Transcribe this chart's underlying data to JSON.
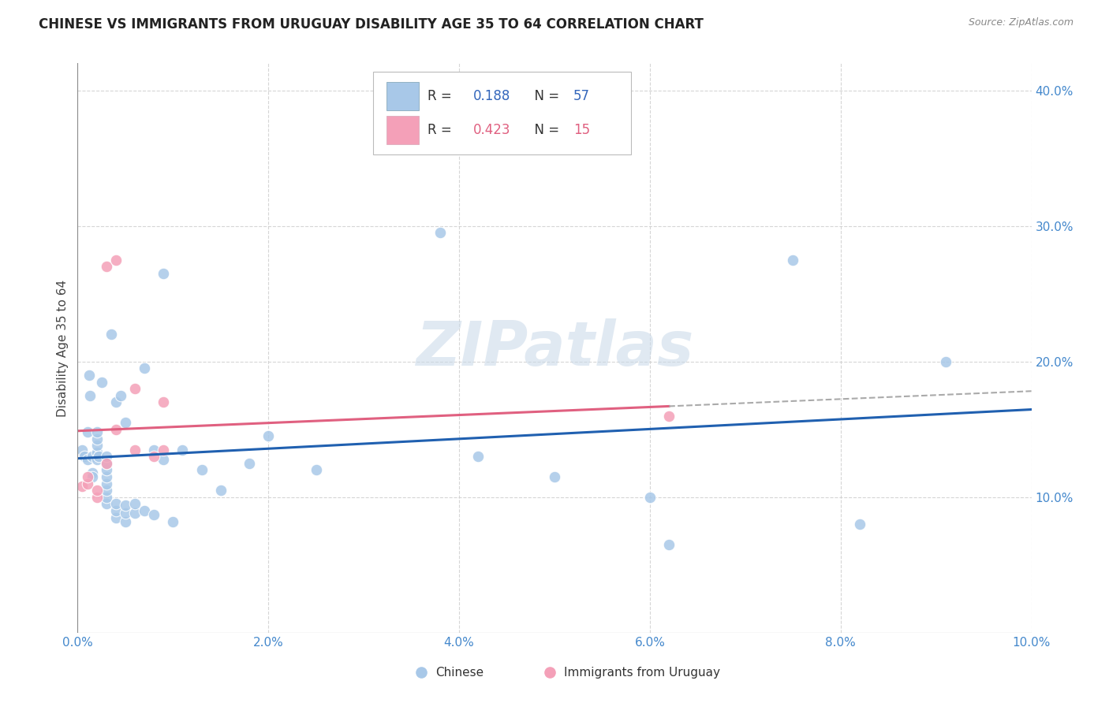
{
  "title": "CHINESE VS IMMIGRANTS FROM URUGUAY DISABILITY AGE 35 TO 64 CORRELATION CHART",
  "source": "Source: ZipAtlas.com",
  "ylabel": "Disability Age 35 to 64",
  "xlim": [
    0.0,
    0.1
  ],
  "ylim": [
    0.0,
    0.42
  ],
  "xticks": [
    0.0,
    0.02,
    0.04,
    0.06,
    0.08,
    0.1
  ],
  "yticks": [
    0.1,
    0.2,
    0.3,
    0.4
  ],
  "xtick_labels": [
    "0.0%",
    "2.0%",
    "4.0%",
    "6.0%",
    "8.0%",
    "10.0%"
  ],
  "ytick_labels": [
    "10.0%",
    "20.0%",
    "30.0%",
    "40.0%"
  ],
  "chinese_color": "#a8c8e8",
  "uruguay_color": "#f4a0b8",
  "chinese_line_color": "#2060b0",
  "uruguay_line_color": "#e06080",
  "chinese_R": 0.188,
  "chinese_N": 57,
  "uruguay_R": 0.423,
  "uruguay_N": 15,
  "background_color": "#ffffff",
  "grid_color": "#cccccc",
  "watermark": "ZIPatlas",
  "legend_labels": [
    "Chinese",
    "Immigrants from Uruguay"
  ],
  "chinese_x": [
    0.0005,
    0.0007,
    0.001,
    0.001,
    0.0012,
    0.0013,
    0.0015,
    0.0015,
    0.0015,
    0.002,
    0.002,
    0.002,
    0.002,
    0.002,
    0.0022,
    0.0025,
    0.003,
    0.003,
    0.003,
    0.003,
    0.003,
    0.003,
    0.003,
    0.003,
    0.0035,
    0.004,
    0.004,
    0.004,
    0.004,
    0.0045,
    0.005,
    0.005,
    0.005,
    0.005,
    0.006,
    0.006,
    0.007,
    0.007,
    0.008,
    0.008,
    0.009,
    0.009,
    0.01,
    0.011,
    0.013,
    0.015,
    0.018,
    0.02,
    0.025,
    0.038,
    0.042,
    0.05,
    0.06,
    0.062,
    0.075,
    0.082,
    0.091
  ],
  "chinese_y": [
    0.135,
    0.13,
    0.128,
    0.148,
    0.19,
    0.175,
    0.13,
    0.118,
    0.115,
    0.128,
    0.133,
    0.138,
    0.143,
    0.148,
    0.13,
    0.185,
    0.095,
    0.1,
    0.105,
    0.11,
    0.115,
    0.12,
    0.125,
    0.13,
    0.22,
    0.085,
    0.09,
    0.095,
    0.17,
    0.175,
    0.082,
    0.088,
    0.094,
    0.155,
    0.088,
    0.095,
    0.09,
    0.195,
    0.087,
    0.135,
    0.128,
    0.265,
    0.082,
    0.135,
    0.12,
    0.105,
    0.125,
    0.145,
    0.12,
    0.295,
    0.13,
    0.115,
    0.1,
    0.065,
    0.275,
    0.08,
    0.2
  ],
  "uruguay_x": [
    0.0005,
    0.001,
    0.001,
    0.002,
    0.002,
    0.003,
    0.003,
    0.004,
    0.004,
    0.006,
    0.006,
    0.008,
    0.009,
    0.009,
    0.062
  ],
  "uruguay_y": [
    0.108,
    0.11,
    0.115,
    0.1,
    0.105,
    0.27,
    0.125,
    0.15,
    0.275,
    0.135,
    0.18,
    0.13,
    0.17,
    0.135,
    0.16
  ]
}
